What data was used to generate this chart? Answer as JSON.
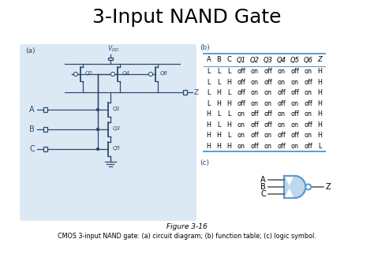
{
  "title": "3-Input NAND Gate",
  "title_fontsize": 18,
  "bg_color": "#ffffff",
  "label_a": "(a)",
  "label_b": "(b)",
  "label_c": "(c)",
  "circuit_bg": "#dce9f5",
  "circuit_line_color": "#2d4a6e",
  "table_header": [
    "A",
    "B",
    "C",
    "Q1",
    "Q2",
    "Q3",
    "Q4",
    "Q5",
    "Q6",
    "Z"
  ],
  "table_rows": [
    [
      "L",
      "L",
      "L",
      "off",
      "on",
      "off",
      "on",
      "off",
      "on",
      "H"
    ],
    [
      "L",
      "L",
      "H",
      "off",
      "on",
      "off",
      "on",
      "on",
      "off",
      "H"
    ],
    [
      "L",
      "H",
      "L",
      "off",
      "on",
      "on",
      "off",
      "off",
      "on",
      "H"
    ],
    [
      "L",
      "H",
      "H",
      "off",
      "on",
      "on",
      "off",
      "on",
      "off",
      "H"
    ],
    [
      "H",
      "L",
      "L",
      "on",
      "off",
      "off",
      "on",
      "off",
      "on",
      "H"
    ],
    [
      "H",
      "L",
      "H",
      "on",
      "off",
      "off",
      "on",
      "on",
      "off",
      "H"
    ],
    [
      "H",
      "H",
      "L",
      "on",
      "off",
      "on",
      "off",
      "off",
      "on",
      "H"
    ],
    [
      "H",
      "H",
      "H",
      "on",
      "off",
      "on",
      "off",
      "on",
      "off",
      "L"
    ]
  ],
  "figure_caption": "Figure 3-16",
  "bottom_caption": "CMOS 3-input NAND gate: (a) circuit diagram; (b) function table; (c) logic symbol.",
  "nand_color": "#5b9bd5",
  "table_line_color": "#5b9bd5"
}
